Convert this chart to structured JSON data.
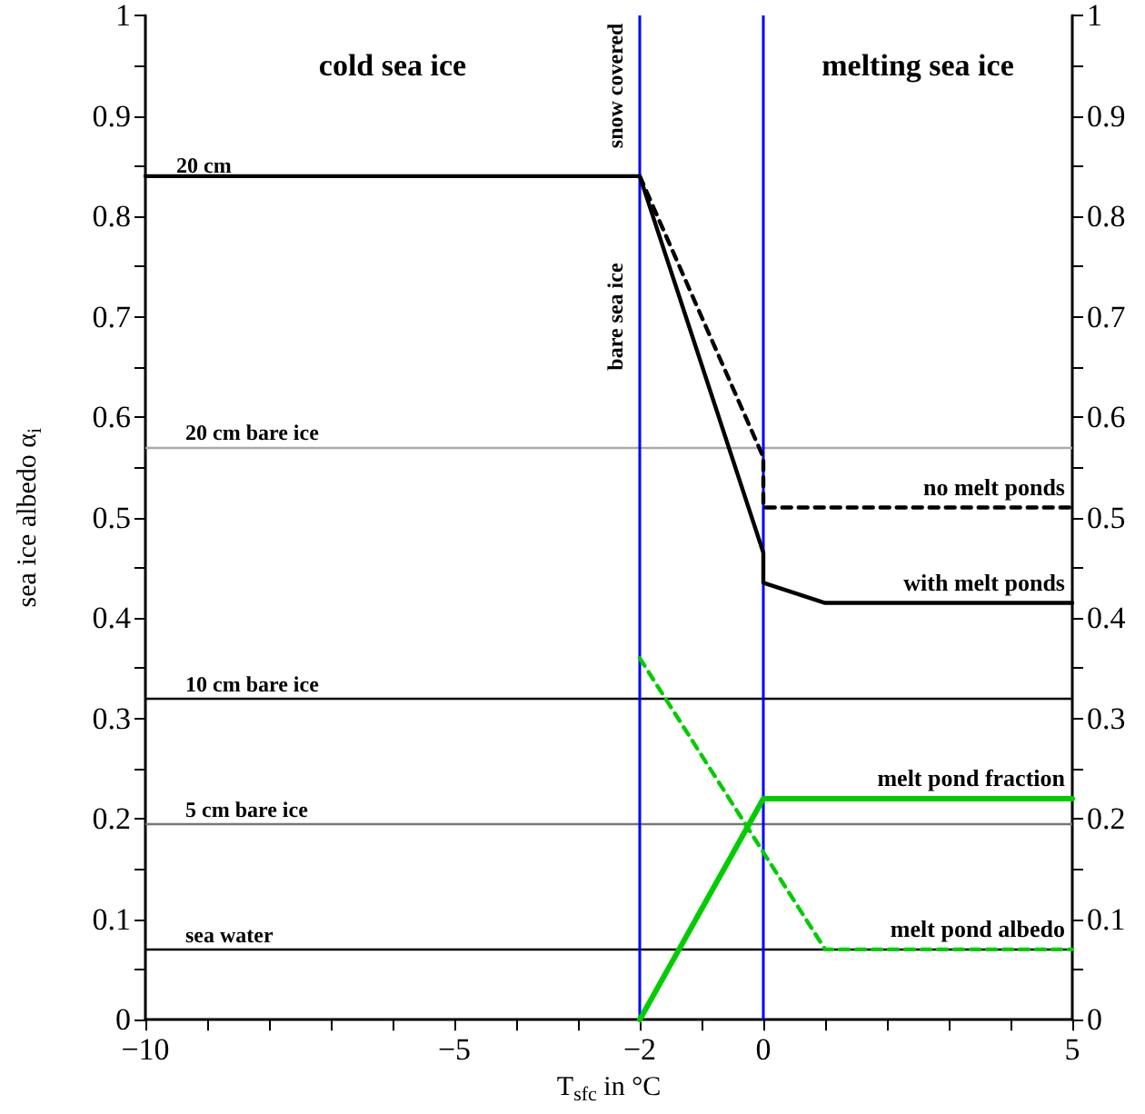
{
  "chart_data": {
    "type": "line",
    "xlabel": "T$_{sfc}$ in °C",
    "ylabel": "sea ice albedo α$_{i}$",
    "xlim": [
      -10,
      5
    ],
    "xticks": [
      {
        "value": -10,
        "label": "−10"
      },
      {
        "value": -9,
        "label": null
      },
      {
        "value": -8,
        "label": null
      },
      {
        "value": -7,
        "label": null
      },
      {
        "value": -6,
        "label": null
      },
      {
        "value": -5,
        "label": "−5"
      },
      {
        "value": -4,
        "label": null
      },
      {
        "value": -3,
        "label": null
      },
      {
        "value": -2,
        "label": "−2"
      },
      {
        "value": -1,
        "label": null
      },
      0,
      {
        "value": 1,
        "label": null
      },
      {
        "value": 2,
        "label": null
      },
      {
        "value": 3,
        "label": null
      },
      {
        "value": 4,
        "label": null
      },
      5
    ],
    "ylim": [
      0,
      1
    ],
    "yticks": [
      0,
      {
        "value": 0.05,
        "label": null
      },
      0.1,
      {
        "value": 0.15,
        "label": null
      },
      0.2,
      {
        "value": 0.25,
        "label": null
      },
      0.3,
      {
        "value": 0.35,
        "label": null
      },
      0.4,
      {
        "value": 0.45,
        "label": null
      },
      0.5,
      {
        "value": 0.55,
        "label": null
      },
      0.6,
      {
        "value": 0.65,
        "label": null
      },
      0.7,
      {
        "value": 0.75,
        "label": null
      },
      0.8,
      {
        "value": 0.85,
        "label": null
      },
      0.9,
      {
        "value": 0.95,
        "label": null
      },
      1
    ],
    "y2lim": [
      0,
      1
    ],
    "y2ticks": [
      0,
      {
        "value": 0.05,
        "label": null
      },
      0.1,
      {
        "value": 0.15,
        "label": null
      },
      0.2,
      {
        "value": 0.25,
        "label": null
      },
      0.3,
      {
        "value": 0.35,
        "label": null
      },
      0.4,
      {
        "value": 0.45,
        "label": null
      },
      0.5,
      {
        "value": 0.55,
        "label": null
      },
      0.6,
      {
        "value": 0.65,
        "label": null
      },
      0.7,
      {
        "value": 0.75,
        "label": null
      },
      0.8,
      {
        "value": 0.85,
        "label": null
      },
      0.9,
      {
        "value": 0.95,
        "label": null
      },
      1
    ],
    "grid": false,
    "legend": false,
    "marker": "none",
    "series": [
      {
        "name": "with melt ponds",
        "color": "#000000",
        "line_style": "solid",
        "x": [
          -10,
          -2,
          0,
          0,
          1,
          5
        ],
        "values": [
          0.84,
          0.84,
          0.465,
          0.435,
          0.415,
          0.415
        ]
      },
      {
        "name": "no melt ponds",
        "color": "#000000",
        "line_style": "dashed",
        "x": [
          -2,
          0,
          0,
          5
        ],
        "values": [
          0.84,
          0.56,
          0.51,
          0.51
        ]
      },
      {
        "name": "melt pond fraction",
        "color": "#00cc00",
        "line_style": "solid",
        "x": [
          -2,
          0,
          5
        ],
        "values": [
          0,
          0.22,
          0.22
        ]
      },
      {
        "name": "melt pond albedo",
        "color": "#00cc00",
        "line_style": "dashed",
        "x": [
          -2,
          1,
          5
        ],
        "values": [
          0.36,
          0.07,
          0.07
        ]
      }
    ],
    "ref_lines": [
      {
        "axis": "y",
        "value": 0.57,
        "label": "20 cm bare ice",
        "color": "#aaaaaa"
      },
      {
        "axis": "y",
        "value": 0.32,
        "label": "10 cm bare ice",
        "color": "#000000"
      },
      {
        "axis": "y",
        "value": 0.195,
        "label": "5 cm bare ice",
        "color": "#777777"
      },
      {
        "axis": "y",
        "value": 0.07,
        "label": "sea water",
        "color": "#000000"
      },
      {
        "axis": "x",
        "value": -2,
        "color": "#0000ff"
      },
      {
        "axis": "x",
        "value": 0,
        "color": "#0000ff"
      }
    ],
    "annotations": [
      "cold sea ice",
      "melting sea ice",
      "snow covered",
      "bare sea ice",
      {
        "text": "20 cm",
        "x": -9.5,
        "y": 0.84
      }
    ]
  }
}
